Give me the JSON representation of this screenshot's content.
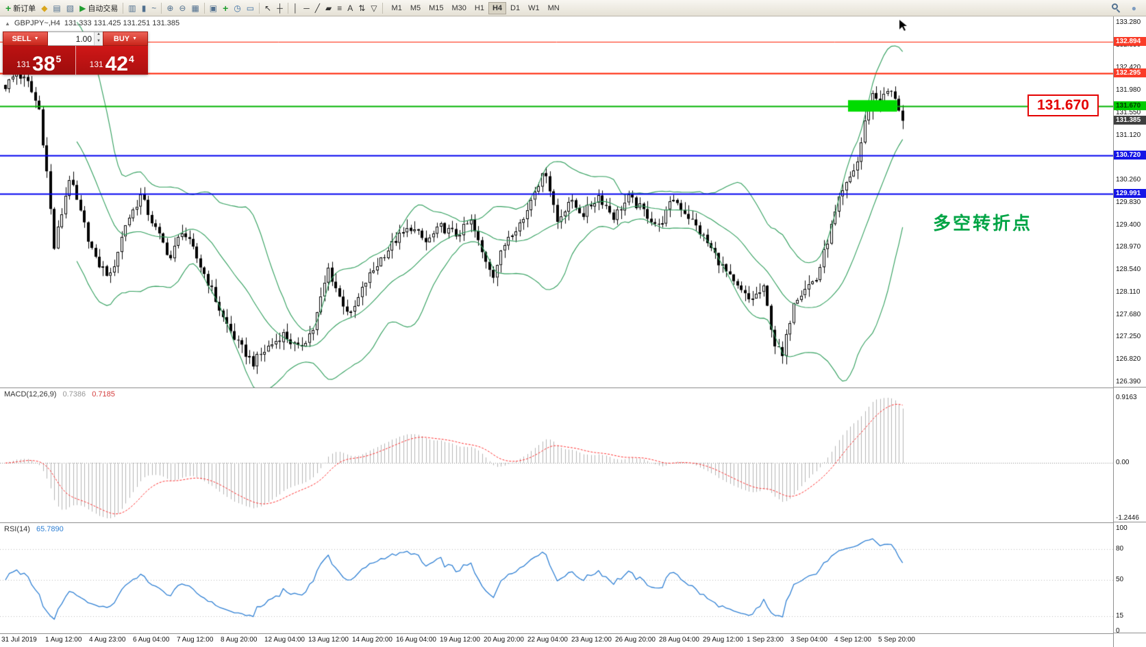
{
  "toolbar": {
    "items": [
      {
        "name": "new-order",
        "glyph": "+",
        "color": "#1f9d2f",
        "label": "新订单"
      },
      {
        "name": "market-watch",
        "glyph": "◆",
        "color": "#d9a61c"
      },
      {
        "name": "data-window",
        "glyph": "▤",
        "color": "#51708f"
      },
      {
        "name": "strategy-tester",
        "glyph": "▧",
        "color": "#51708f"
      },
      {
        "name": "auto-trading",
        "glyph": "▶",
        "color": "#1f9d2f",
        "label": "自动交易"
      },
      {
        "sep": true
      },
      {
        "name": "bar-chart",
        "glyph": "▥",
        "color": "#51708f"
      },
      {
        "name": "candlestick-chart",
        "glyph": "▮",
        "color": "#51708f"
      },
      {
        "name": "line-chart",
        "glyph": "~",
        "color": "#51708f"
      },
      {
        "sep": true
      },
      {
        "name": "zoom-in",
        "glyph": "⊕",
        "color": "#51708f"
      },
      {
        "name": "zoom-out",
        "glyph": "⊖",
        "color": "#51708f"
      },
      {
        "name": "grid",
        "glyph": "▦",
        "color": "#51708f"
      },
      {
        "sep": true
      },
      {
        "name": "tile-windows",
        "glyph": "▣",
        "color": "#51708f"
      },
      {
        "name": "indicators",
        "glyph": "+",
        "color": "#1f9d2f"
      },
      {
        "name": "periods",
        "glyph": "◷",
        "color": "#3a6ea5"
      },
      {
        "name": "templates",
        "glyph": "▭",
        "color": "#3a6ea5"
      },
      {
        "sep": true
      },
      {
        "name": "cursor-tool",
        "glyph": "↖",
        "color": "#333333"
      },
      {
        "name": "crosshair-tool",
        "glyph": "┼",
        "color": "#333333"
      },
      {
        "sep": true
      },
      {
        "name": "vertical-line-tool",
        "glyph": "│",
        "color": "#333333"
      },
      {
        "name": "horizontal-line-tool",
        "glyph": "─",
        "color": "#333333"
      },
      {
        "name": "trendline-tool",
        "glyph": "╱",
        "color": "#333333"
      },
      {
        "name": "channel-tool",
        "glyph": "▰",
        "color": "#333333"
      },
      {
        "name": "fibonacci-tool",
        "glyph": "≡",
        "color": "#333333"
      },
      {
        "name": "text-tool",
        "glyph": "A",
        "color": "#333333"
      },
      {
        "name": "arrows-tool",
        "glyph": "⇅",
        "color": "#333333"
      },
      {
        "name": "shapes-tool",
        "glyph": "▽",
        "color": "#333333"
      },
      {
        "sep": true
      }
    ],
    "timeframes": [
      "M1",
      "M5",
      "M15",
      "M30",
      "H1",
      "H4",
      "D1",
      "W1",
      "MN"
    ],
    "active_timeframe": "H4",
    "right_items": [
      {
        "name": "search",
        "css": "magnifier"
      },
      {
        "name": "community",
        "glyph": "●",
        "color": "#7d9cc0"
      }
    ]
  },
  "symbol_info": {
    "collapse_icon": "▲",
    "symbol": "GBPJPY~,H4",
    "ohlc": "131.333 131.425 131.251 131.385"
  },
  "trade_panel": {
    "sell_label": "SELL",
    "buy_label": "BUY",
    "caret": "▼",
    "volume": "1.00",
    "spin_up": "▲",
    "spin_down": "▼",
    "sell_price": {
      "prefix": "131",
      "big": "38",
      "sup": "5"
    },
    "buy_price": {
      "prefix": "131",
      "big": "42",
      "sup": "4"
    }
  },
  "chart": {
    "price_max": 133.28,
    "price_min": 126.39,
    "price_ticks": [
      "133.280",
      "132.850",
      "132.420",
      "131.980",
      "131.550",
      "131.120",
      "130.690",
      "130.260",
      "129.830",
      "129.400",
      "128.970",
      "128.540",
      "128.110",
      "127.680",
      "127.250",
      "126.820",
      "126.390"
    ],
    "hlines": [
      {
        "price": 132.894,
        "color": "#ff1e00",
        "width": 1
      },
      {
        "price": 132.295,
        "color": "#ff1e00",
        "width": 2
      },
      {
        "price": 131.67,
        "color": "#00b400",
        "width": 2
      },
      {
        "price": 130.72,
        "color": "#0000f0",
        "width": 2
      },
      {
        "price": 129.991,
        "color": "#0000f0",
        "width": 2
      }
    ],
    "badges": [
      {
        "price": 132.894,
        "text": "132.894",
        "bg": "#fa3c28",
        "fg": "#ffffff"
      },
      {
        "price": 132.295,
        "text": "132.295",
        "bg": "#fa3c28",
        "fg": "#ffffff"
      },
      {
        "price": 131.67,
        "text": "131.670",
        "bg": "#00cc00",
        "fg": "#003a00"
      },
      {
        "price": 131.385,
        "text": "131.385",
        "bg": "#3f3f3f",
        "fg": "#ffffff"
      },
      {
        "price": 130.72,
        "text": "130.720",
        "bg": "#1616e6",
        "fg": "#ffffff"
      },
      {
        "price": 129.991,
        "text": "129.991",
        "bg": "#1616e6",
        "fg": "#ffffff"
      }
    ],
    "callout": {
      "text": "131.670"
    },
    "annotation": {
      "text": "多空转折点"
    },
    "highlight_box": {
      "from_index": 225,
      "to_index": 237,
      "price_top": 131.78,
      "price_bottom": 131.56,
      "color": "#00dc00"
    },
    "num_candles": 240,
    "last_close": 131.385,
    "candle_up_color": "#ffffff",
    "candle_down_color": "#000000",
    "band_color": "#2e9e5b",
    "waypoints": [
      [
        0,
        132.05
      ],
      [
        3,
        132.3
      ],
      [
        6,
        132.1
      ],
      [
        9,
        131.6
      ],
      [
        11,
        130.4
      ],
      [
        13,
        128.95
      ],
      [
        17,
        130.3
      ],
      [
        20,
        129.6
      ],
      [
        24,
        128.7
      ],
      [
        28,
        128.4
      ],
      [
        32,
        129.4
      ],
      [
        36,
        129.95
      ],
      [
        40,
        129.3
      ],
      [
        44,
        128.75
      ],
      [
        47,
        129.3
      ],
      [
        50,
        128.9
      ],
      [
        54,
        128.3
      ],
      [
        58,
        127.6
      ],
      [
        62,
        127.1
      ],
      [
        66,
        126.75
      ],
      [
        70,
        127.05
      ],
      [
        74,
        127.3
      ],
      [
        78,
        127.0
      ],
      [
        82,
        127.4
      ],
      [
        86,
        128.55
      ],
      [
        89,
        128.0
      ],
      [
        92,
        127.65
      ],
      [
        96,
        128.3
      ],
      [
        100,
        128.75
      ],
      [
        104,
        129.1
      ],
      [
        108,
        129.35
      ],
      [
        112,
        129.05
      ],
      [
        116,
        129.35
      ],
      [
        120,
        129.2
      ],
      [
        124,
        129.45
      ],
      [
        127,
        128.85
      ],
      [
        130,
        128.45
      ],
      [
        134,
        129.2
      ],
      [
        138,
        129.5
      ],
      [
        141,
        130.1
      ],
      [
        144,
        130.4
      ],
      [
        147,
        129.45
      ],
      [
        150,
        129.85
      ],
      [
        154,
        129.6
      ],
      [
        158,
        129.95
      ],
      [
        162,
        129.55
      ],
      [
        166,
        129.9
      ],
      [
        170,
        129.65
      ],
      [
        174,
        129.35
      ],
      [
        178,
        129.9
      ],
      [
        182,
        129.55
      ],
      [
        186,
        129.15
      ],
      [
        190,
        128.7
      ],
      [
        194,
        128.25
      ],
      [
        198,
        127.95
      ],
      [
        202,
        128.15
      ],
      [
        205,
        127.1
      ],
      [
        207,
        126.85
      ],
      [
        210,
        127.95
      ],
      [
        213,
        128.2
      ],
      [
        216,
        128.35
      ],
      [
        219,
        129.1
      ],
      [
        222,
        129.85
      ],
      [
        225,
        130.3
      ],
      [
        227,
        130.6
      ],
      [
        229,
        131.35
      ],
      [
        231,
        131.9
      ],
      [
        233,
        131.75
      ],
      [
        235,
        131.95
      ],
      [
        237,
        131.85
      ],
      [
        239,
        131.39
      ]
    ]
  },
  "macd": {
    "title": "MACD(12,26,9)",
    "value_main": "0.7386",
    "value_signal": "0.7185",
    "axis_top": "0.9163",
    "axis_zero": "0.00",
    "axis_bottom": "-1.2446",
    "histogram_color": "#b4b4b4",
    "signal_color": "#ff3030",
    "params": {
      "fast": 12,
      "slow": 26,
      "signal": 9
    }
  },
  "rsi": {
    "title": "RSI(14)",
    "value": "65.7890",
    "period": 14,
    "axis": [
      "100",
      "80",
      "50",
      "15",
      "0"
    ],
    "levels": [
      80,
      50,
      15
    ],
    "line_color": "#2d7fd4"
  },
  "time_axis": {
    "labels": [
      "31 Jul 2019",
      "1 Aug 12:00",
      "4 Aug 23:00",
      "6 Aug 04:00",
      "7 Aug 12:00",
      "8 Aug 20:00",
      "12 Aug 04:00",
      "13 Aug 12:00",
      "14 Aug 20:00",
      "16 Aug 04:00",
      "19 Aug 12:00",
      "20 Aug 20:00",
      "22 Aug 04:00",
      "23 Aug 12:00",
      "26 Aug 20:00",
      "28 Aug 04:00",
      "29 Aug 12:00",
      "1 Sep 23:00",
      "3 Sep 04:00",
      "4 Sep 12:00",
      "5 Sep 20:00"
    ]
  }
}
